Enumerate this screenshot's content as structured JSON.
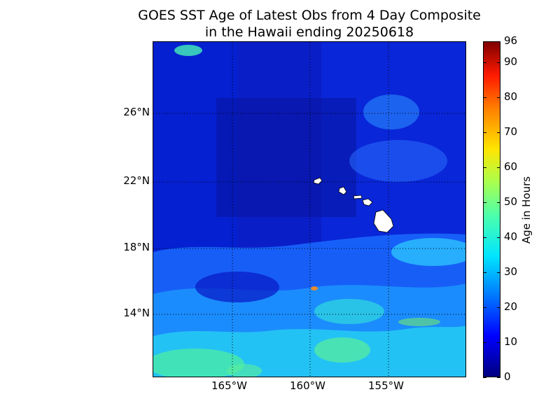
{
  "title": {
    "line1": "GOES SST Age of Latest Obs from 4 Day Composite",
    "line2": "in the Hawaii ending 20250618"
  },
  "map": {
    "background_color": "#0a1ec8",
    "lat_labels": [
      "26°N",
      "22°N",
      "18°N",
      "14°N"
    ],
    "lon_labels": [
      "165°W",
      "160°W",
      "155°W"
    ],
    "grid": "dotted",
    "land_color": "#ffffff",
    "features": [
      "Kauai",
      "Oahu",
      "Molokai",
      "Maui",
      "Hawaii (Big Island)"
    ]
  },
  "colorbar": {
    "label": "Age in Hours",
    "tick_labels": [
      "96",
      "90",
      "80",
      "70",
      "60",
      "50",
      "40",
      "30",
      "20",
      "10",
      "0"
    ],
    "range": [
      0,
      96
    ],
    "colormap": "jet"
  }
}
